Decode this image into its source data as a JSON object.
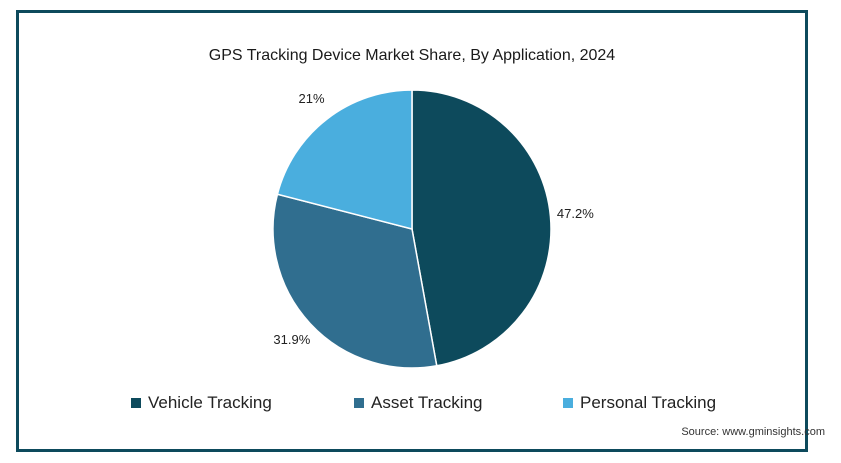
{
  "chart_data": {
    "type": "pie",
    "title": "GPS Tracking Device Market Share, By Application, 2024",
    "categories": [
      "Vehicle Tracking",
      "Asset Tracking",
      "Personal Tracking"
    ],
    "values": [
      47.2,
      31.9,
      21
    ],
    "value_labels": [
      "47.2%",
      "31.9%",
      "21%"
    ],
    "colors": [
      "#0d4a5c",
      "#306e8f",
      "#4aaede"
    ],
    "legend_position": "bottom"
  },
  "source": "Source: www.gminsights.com"
}
